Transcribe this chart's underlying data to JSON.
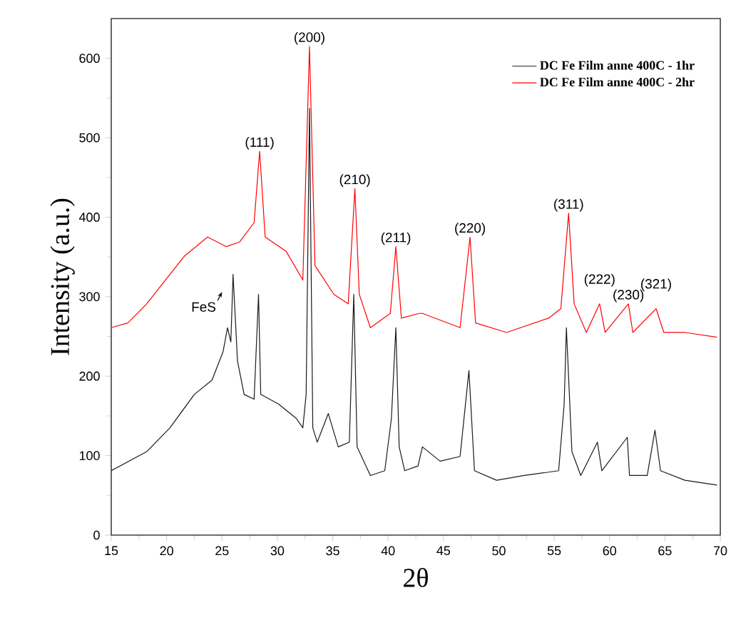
{
  "chart_data": {
    "type": "line",
    "xlabel": "2θ",
    "ylabel": "Intensity (a.u.)",
    "xlim": [
      15,
      70
    ],
    "ylim": [
      0,
      650
    ],
    "xticks": [
      15,
      20,
      25,
      30,
      35,
      40,
      45,
      50,
      55,
      60,
      65,
      70
    ],
    "yticks": [
      0,
      100,
      200,
      300,
      400,
      500,
      600
    ],
    "legend": "top right",
    "grid": false,
    "marker": "none",
    "line_style": "solid",
    "series": [
      {
        "name": "DC Fe Film anne 400C - 1hr",
        "color": "#1a1a1a",
        "x": [
          15,
          18.2,
          20.3,
          22.5,
          24.1,
          25.1,
          25.5,
          25.8,
          26.0,
          26.4,
          27.0,
          27.9,
          28.3,
          28.5,
          30.1,
          31.7,
          32.3,
          32.6,
          32.9,
          33.2,
          33.6,
          34.6,
          35.5,
          36.5,
          36.9,
          37.2,
          38.4,
          39.7,
          40.3,
          40.7,
          41.0,
          41.5,
          42.7,
          43.1,
          44.7,
          46.5,
          47.3,
          47.8,
          49.8,
          52.3,
          55.4,
          55.9,
          56.1,
          56.6,
          57.4,
          58.9,
          59.3,
          61.6,
          61.8,
          63.4,
          64.1,
          64.6,
          66.8,
          69.7
        ],
        "values": [
          81,
          105,
          135,
          177,
          195,
          231,
          261,
          243,
          328,
          219,
          177,
          171,
          303,
          177,
          165,
          147,
          135,
          177,
          537,
          135,
          117,
          153,
          111,
          117,
          303,
          111,
          75,
          81,
          147,
          261,
          111,
          81,
          87,
          111,
          93,
          99,
          207,
          81,
          69,
          75,
          81,
          165,
          261,
          105,
          75,
          117,
          81,
          123,
          75,
          75,
          132,
          81,
          69,
          63
        ]
      },
      {
        "name": "DC Fe Film anne 400C - 2hr",
        "color": "#ff0000",
        "x": [
          15,
          16.5,
          18.2,
          19.9,
          21.6,
          23.7,
          25.4,
          26.6,
          27.9,
          28.4,
          28.9,
          30.8,
          32.3,
          32.9,
          33.4,
          35.1,
          36.4,
          37.0,
          37.4,
          38.4,
          40.2,
          40.7,
          41.2,
          42.8,
          43.1,
          46.5,
          47.4,
          47.9,
          50.7,
          54.5,
          55.6,
          56.3,
          56.8,
          57.9,
          59.1,
          59.6,
          61.7,
          62.1,
          64.2,
          64.9,
          66.8,
          69.7
        ],
        "values": [
          261,
          267,
          291,
          321,
          351,
          375,
          363,
          369,
          393,
          483,
          375,
          357,
          321,
          615,
          339,
          303,
          291,
          436,
          303,
          261,
          279,
          363,
          273,
          279,
          279,
          261,
          375,
          267,
          255,
          273,
          285,
          405,
          291,
          255,
          291,
          255,
          291,
          255,
          285,
          255,
          255,
          249
        ]
      }
    ],
    "annotations": [
      {
        "text": "(111)",
        "x": 28.4,
        "y": 483
      },
      {
        "text": "(200)",
        "x": 32.9,
        "y": 615
      },
      {
        "text": "(210)",
        "x": 37.0,
        "y": 436
      },
      {
        "text": "(211)",
        "x": 40.7,
        "y": 363
      },
      {
        "text": "(220)",
        "x": 47.4,
        "y": 375
      },
      {
        "text": "(311)",
        "x": 56.3,
        "y": 405
      },
      {
        "text": "(222)",
        "x": 59.1,
        "y": 291
      },
      {
        "text": "(230)",
        "x": 61.7,
        "y": 291
      },
      {
        "text": "(321)",
        "x": 64.2,
        "y": 285
      },
      {
        "text": "FeS",
        "x": 25.0,
        "y": 306
      }
    ]
  }
}
